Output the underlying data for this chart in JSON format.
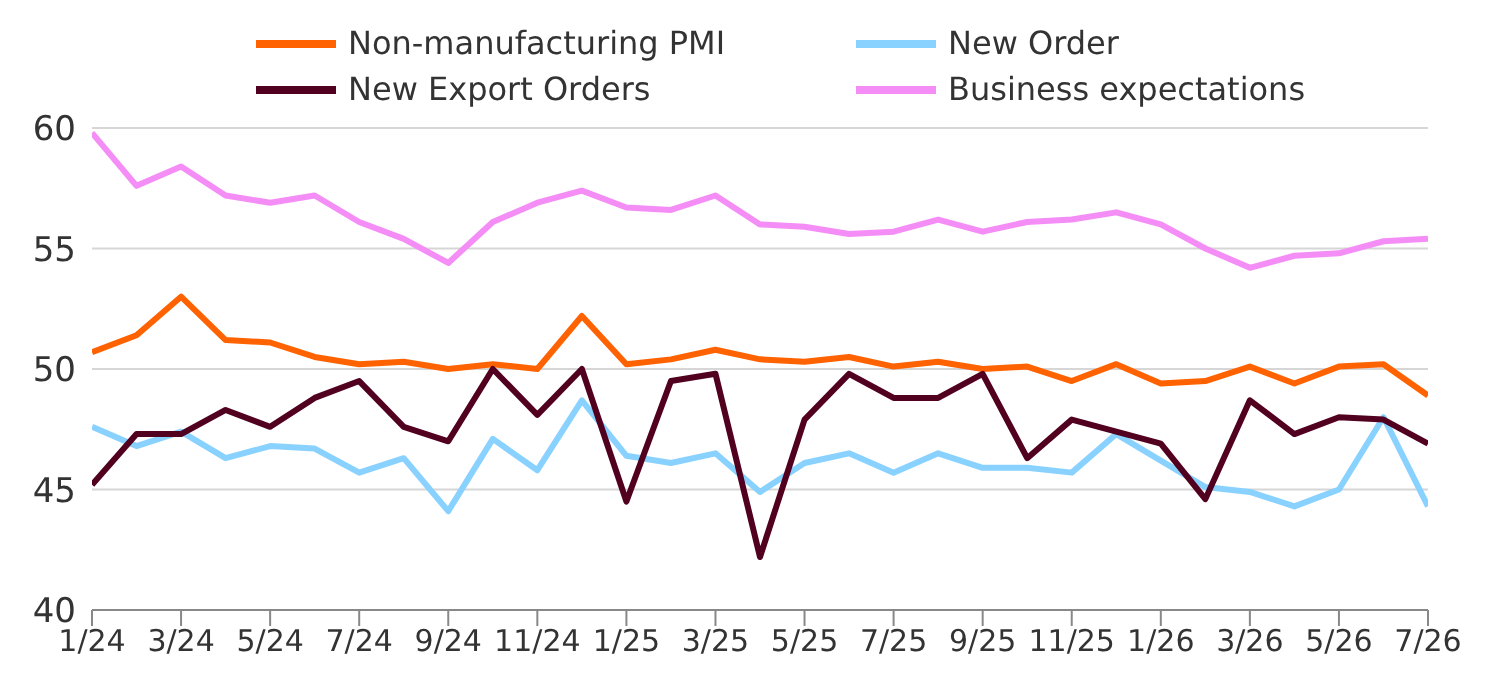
{
  "chart_data": {
    "type": "line",
    "categories": [
      "1/24",
      null,
      "3/24",
      null,
      "5/24",
      null,
      "7/24",
      null,
      "9/24",
      null,
      "11/24",
      null,
      "1/25",
      null,
      "3/25",
      null,
      "5/25",
      null,
      "7/25",
      null,
      "9/25",
      null,
      "11/25",
      null,
      "1/26",
      null,
      "3/26",
      null,
      "5/26",
      null,
      "7/26"
    ],
    "series": [
      {
        "name": "Non-manufacturing PMI",
        "color": "#ff6200",
        "values": [
          50.7,
          51.4,
          53.0,
          51.2,
          51.1,
          50.5,
          50.2,
          50.3,
          50.0,
          50.2,
          50.0,
          52.2,
          50.2,
          50.4,
          50.8,
          50.4,
          50.3,
          50.5,
          50.1,
          50.3,
          50.0,
          50.1,
          49.5,
          50.2,
          49.4,
          49.5,
          50.1,
          49.4,
          50.1,
          50.2,
          48.9
        ]
      },
      {
        "name": "New Order",
        "color": "#89d2ff",
        "values": [
          47.6,
          46.8,
          47.4,
          46.3,
          46.8,
          46.7,
          45.7,
          46.3,
          44.1,
          47.1,
          45.8,
          48.7,
          46.4,
          46.1,
          46.5,
          44.9,
          46.1,
          46.5,
          45.7,
          46.5,
          45.9,
          45.9,
          45.7,
          47.3,
          46.2,
          45.1,
          44.9,
          44.3,
          45.0,
          48.0,
          44.3
        ]
      },
      {
        "name": "New Export Orders",
        "color": "#520020",
        "values": [
          45.2,
          47.3,
          47.3,
          48.3,
          47.6,
          48.8,
          49.5,
          47.6,
          47.0,
          50.0,
          48.1,
          50.0,
          44.5,
          49.5,
          49.8,
          42.2,
          47.9,
          49.8,
          48.8,
          48.8,
          49.8,
          46.3,
          47.9,
          47.4,
          46.9,
          44.6,
          48.7,
          47.3,
          48.0,
          47.9,
          46.9
        ]
      },
      {
        "name": "Business expectations",
        "color": "#f48ef6",
        "values": [
          59.8,
          57.6,
          58.4,
          57.2,
          56.9,
          57.2,
          56.1,
          55.4,
          54.4,
          56.1,
          56.9,
          57.4,
          56.7,
          56.6,
          57.2,
          56.0,
          55.9,
          55.6,
          55.7,
          56.2,
          55.7,
          56.1,
          56.2,
          56.5,
          56.0,
          55.0,
          54.2,
          54.7,
          54.8,
          55.3,
          55.4
        ]
      }
    ],
    "ylim": [
      40,
      60
    ],
    "yticks": [
      40,
      45,
      50,
      55,
      60
    ],
    "grid": "y",
    "legend": "top",
    "marker": "none",
    "line_style": "solid"
  }
}
